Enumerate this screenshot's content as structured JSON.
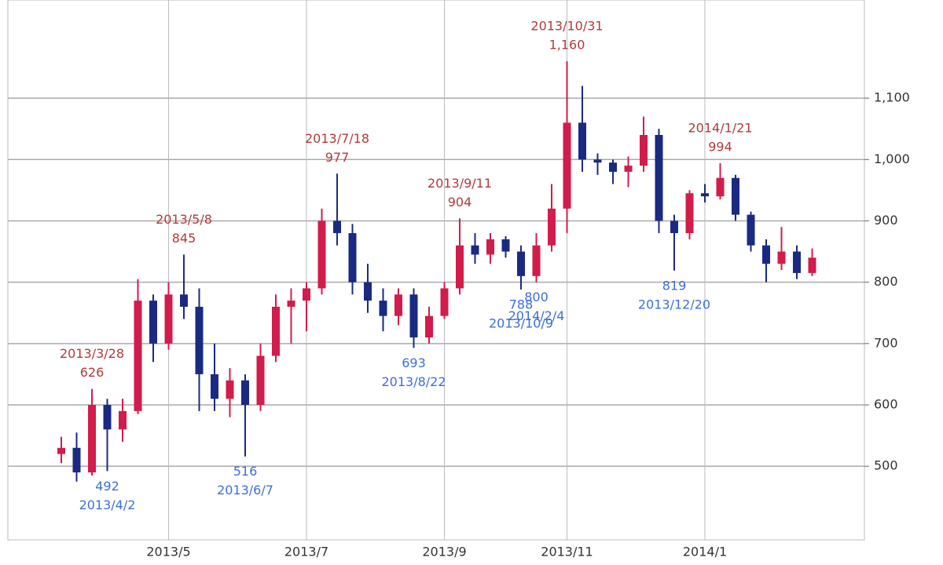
{
  "chart_data": {
    "type": "candlestick",
    "categories": [
      null,
      null,
      null,
      null,
      null,
      null,
      null,
      "2013/5",
      null,
      null,
      null,
      null,
      null,
      null,
      null,
      null,
      "2013/7",
      null,
      null,
      null,
      null,
      null,
      null,
      null,
      null,
      "2013/9",
      null,
      null,
      null,
      null,
      null,
      null,
      null,
      "2013/11",
      null,
      null,
      null,
      null,
      null,
      null,
      null,
      null,
      "2014/1",
      null,
      null,
      null,
      null,
      null,
      null,
      null
    ],
    "open": [
      520,
      530,
      490,
      600,
      560,
      590,
      770,
      700,
      780,
      760,
      650,
      610,
      640,
      600,
      680,
      760,
      770,
      790,
      900,
      880,
      800,
      770,
      745,
      780,
      710,
      745,
      790,
      860,
      845,
      870,
      850,
      810,
      860,
      920,
      1060,
      1000,
      995,
      980,
      990,
      1040,
      900,
      880,
      945,
      940,
      970,
      910,
      860,
      830,
      850,
      815
    ],
    "high": [
      548,
      555,
      626,
      610,
      610,
      805,
      780,
      800,
      845,
      790,
      700,
      660,
      650,
      700,
      780,
      790,
      800,
      920,
      977,
      895,
      830,
      790,
      790,
      790,
      760,
      800,
      904,
      880,
      880,
      875,
      860,
      880,
      960,
      1160,
      1120,
      1010,
      1000,
      1005,
      1070,
      1050,
      910,
      950,
      960,
      994,
      975,
      915,
      870,
      890,
      860,
      855
    ],
    "low": [
      505,
      475,
      485,
      492,
      540,
      585,
      670,
      690,
      740,
      590,
      590,
      580,
      516,
      590,
      670,
      700,
      720,
      780,
      860,
      780,
      750,
      720,
      730,
      693,
      700,
      740,
      780,
      830,
      830,
      840,
      788,
      800,
      850,
      880,
      980,
      975,
      960,
      955,
      980,
      880,
      819,
      870,
      930,
      935,
      900,
      850,
      800,
      820,
      805,
      810
    ],
    "close": [
      530,
      490,
      600,
      560,
      590,
      770,
      700,
      780,
      760,
      650,
      610,
      640,
      600,
      680,
      760,
      770,
      790,
      900,
      880,
      800,
      770,
      745,
      780,
      710,
      745,
      790,
      860,
      845,
      870,
      850,
      810,
      860,
      920,
      1060,
      1000,
      995,
      980,
      990,
      1040,
      900,
      880,
      945,
      940,
      970,
      910,
      860,
      830,
      850,
      815,
      840
    ],
    "up_color": "#d21c4b",
    "down_color": "#1a2a82",
    "ylim": [
      380,
      1260
    ],
    "yticks": [
      500,
      600,
      700,
      800,
      900,
      {
        "value": 1000,
        "label": "1,000"
      },
      {
        "value": 1100,
        "label": "1,100"
      }
    ],
    "grid": true,
    "high_annotations": [
      {
        "date": "2013/3/28",
        "value": 626
      },
      {
        "date": "2013/5/8",
        "value": 845
      },
      {
        "date": "2013/7/18",
        "value": 977
      },
      {
        "date": "2013/9/11",
        "value": 904
      },
      {
        "date": "2013/10/31",
        "value": 1160,
        "label": "1,160"
      },
      {
        "date": "2014/1/21",
        "value": 994
      }
    ],
    "low_annotations": [
      {
        "date": "2013/4/2",
        "value": 492
      },
      {
        "date": "2013/6/7",
        "value": 516
      },
      {
        "date": "2013/8/22",
        "value": 693
      },
      {
        "date": "2013/10/9",
        "value": 788
      },
      {
        "date": "2013/12/20",
        "value": 819
      },
      {
        "date": "2014/2/4",
        "value": 800
      }
    ],
    "high_color": "#b23a3a",
    "low_color": "#3d6fd6"
  }
}
